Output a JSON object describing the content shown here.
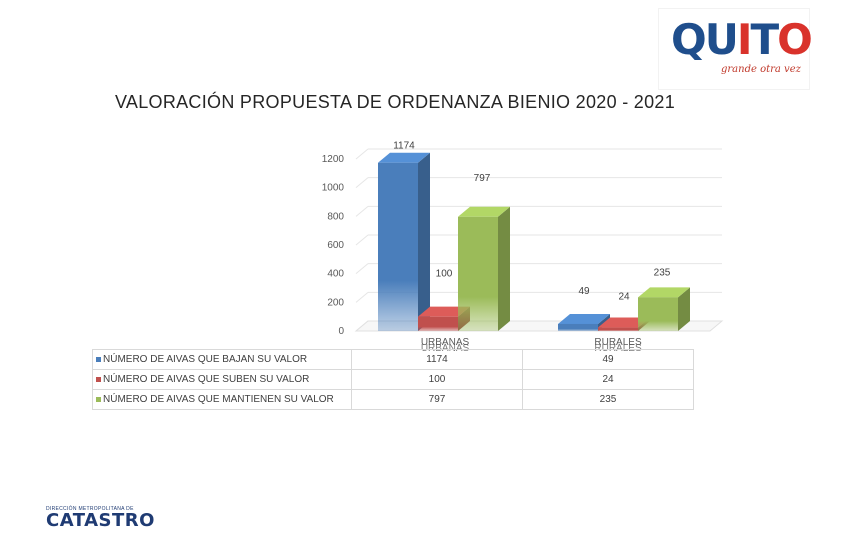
{
  "logo": {
    "brand_parts": [
      "QU",
      "I",
      "T",
      "O"
    ],
    "tagline": "grande otra vez",
    "brand_colors": {
      "blue": "#1f4e8c",
      "red": "#d9322b"
    }
  },
  "footer_logo": {
    "small_text": "DIRECCIÓN METROPOLITANA DE",
    "big_text": "CATASTRO"
  },
  "chart_data": {
    "type": "bar",
    "style": "3d-clustered-column",
    "title": "VALORACIÓN PROPUESTA DE ORDENANZA BIENIO 2020 - 2021",
    "categories": [
      "URBANAS",
      "RURALES"
    ],
    "ylim": [
      0,
      1200
    ],
    "yticks": [
      0,
      200,
      400,
      600,
      800,
      1000,
      1200
    ],
    "grid": true,
    "legend": "data-table",
    "series": [
      {
        "name": "NÚMERO DE AIVAS QUE BAJAN SU VALOR",
        "values": [
          1174,
          49
        ],
        "color": "#4a7ebb"
      },
      {
        "name": "NÚMERO DE AIVAS QUE SUBEN SU VALOR",
        "values": [
          100,
          24
        ],
        "color": "#c0504d"
      },
      {
        "name": "NÚMERO DE AIVAS QUE MANTIENEN SU VALOR",
        "values": [
          797,
          235
        ],
        "color": "#9bbb59"
      }
    ]
  }
}
